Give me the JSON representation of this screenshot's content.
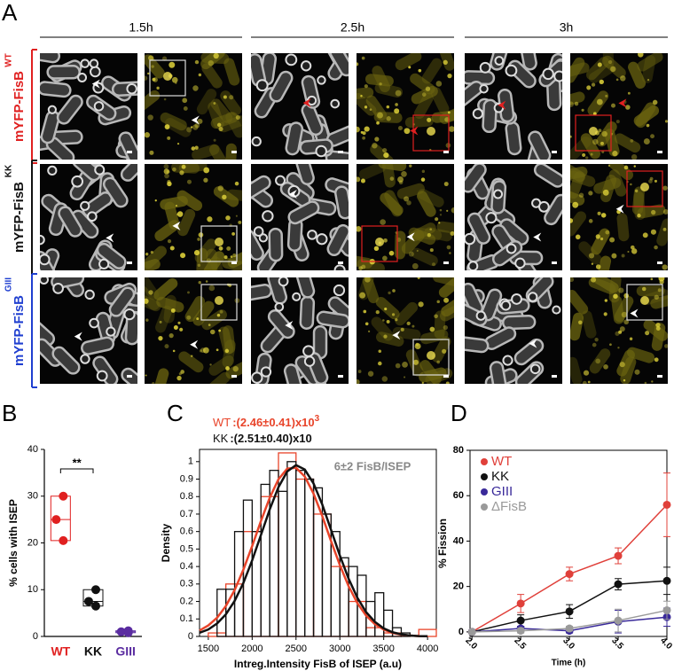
{
  "panel_a": {
    "label": "A",
    "times": [
      "1.5h",
      "2.5h",
      "3h"
    ],
    "rows": [
      {
        "strain": "WT",
        "label": "mYFP-FisB",
        "color": "#e02020"
      },
      {
        "strain": "KK",
        "label": "mYFP-FisB",
        "color": "#111111"
      },
      {
        "strain": "GIII",
        "label": "mYFP-FisB",
        "color": "#1f3fd0"
      }
    ]
  },
  "chart_data": [
    {
      "type": "strip",
      "panel": "B",
      "y_label": "% cells with ISEP",
      "categories": [
        "WT",
        "KK",
        "GIII"
      ],
      "colors": [
        "#e02020",
        "#111111",
        "#5a2ca0"
      ],
      "values": [
        [
          30,
          25,
          20.5
        ],
        [
          10,
          7.5,
          6.5
        ],
        [
          1.2,
          1,
          0.8
        ]
      ],
      "annotation": "**",
      "ylim": [
        0,
        40
      ],
      "yticks": [
        0,
        10,
        20,
        30,
        40
      ]
    },
    {
      "type": "histogram",
      "panel": "C",
      "x_label": "Intreg.Intensity FisB of ISEP (a.u)",
      "y_label": "Density",
      "annotation": "6±2 FisB/ISEP",
      "xlim": [
        1400,
        4100
      ],
      "ylim": [
        0,
        1.07
      ],
      "xticks": [
        1500,
        2000,
        2500,
        3000,
        3500,
        4000
      ],
      "yticks": [
        0,
        0.1,
        0.2,
        0.3,
        0.4,
        0.5,
        0.6,
        0.7,
        0.8,
        0.9,
        1
      ],
      "fit_x": [
        1400,
        1500,
        1600,
        1700,
        1800,
        1900,
        2000,
        2100,
        2200,
        2300,
        2400,
        2500,
        2600,
        2700,
        2800,
        2900,
        3000,
        3100,
        3200,
        3300,
        3400,
        3500,
        3600,
        3700,
        3800,
        3900,
        4000
      ],
      "series": [
        {
          "name": "WT",
          "label": ":(2.46±0.41)x10",
          "exponent": "3",
          "color": "#e8442a",
          "bins": [
            1500,
            1700,
            1900,
            2100,
            2300,
            2500,
            2700,
            2900,
            3100,
            3300,
            3500,
            3700,
            3900,
            4100
          ],
          "values": [
            0.02,
            0.3,
            0.6,
            0.8,
            1.05,
            0.9,
            0.7,
            0.4,
            0.2,
            0.05,
            0.02,
            0,
            0.04
          ],
          "fit_values": [
            0.034,
            0.063,
            0.107,
            0.174,
            0.265,
            0.382,
            0.517,
            0.66,
            0.793,
            0.899,
            0.96,
            0.965,
            0.915,
            0.817,
            0.688,
            0.545,
            0.408,
            0.287,
            0.19,
            0.119,
            0.07,
            0.039,
            0.02,
            0.01,
            0.005,
            0.002,
            0.001
          ]
        },
        {
          "name": "KK",
          "label": ":(2.51±0.40)x10",
          "color": "#111111",
          "bins": [
            1600,
            1700,
            1800,
            1900,
            2000,
            2100,
            2200,
            2300,
            2400,
            2500,
            2600,
            2700,
            2800,
            2900,
            3000,
            3100,
            3200,
            3300,
            3400,
            3500,
            3600,
            3700,
            3800
          ],
          "values": [
            0.27,
            0.27,
            0.6,
            0.78,
            0.6,
            0.87,
            0.95,
            0.83,
            1,
            0.95,
            0.9,
            0.85,
            0.7,
            0.6,
            0.45,
            0.4,
            0.35,
            0.2,
            0.25,
            0.15,
            0.05,
            0.02
          ],
          "fit_values": [
            0.021,
            0.04,
            0.074,
            0.126,
            0.203,
            0.306,
            0.435,
            0.58,
            0.726,
            0.854,
            0.944,
            0.98,
            0.955,
            0.875,
            0.754,
            0.609,
            0.463,
            0.33,
            0.221,
            0.139,
            0.083,
            0.046,
            0.024,
            0.012,
            0.005,
            0.002,
            0.001
          ]
        }
      ]
    },
    {
      "type": "line",
      "panel": "D",
      "x_label": "Time (h)",
      "y_label": "% Fission",
      "x": [
        2,
        2.5,
        3,
        3.5,
        4
      ],
      "xlim": [
        1.98,
        4
      ],
      "ylim": [
        -2,
        80
      ],
      "xticks": [
        {
          "value": 2,
          "label": "2.0"
        },
        {
          "value": 2.5,
          "label": "2.5"
        },
        {
          "value": 3,
          "label": "3.0"
        },
        {
          "value": 3.5,
          "label": "3.5"
        },
        {
          "value": 4,
          "label": "4.0"
        }
      ],
      "yticks": [
        0,
        20,
        40,
        60,
        80
      ],
      "series": [
        {
          "name": "WT",
          "color": "#e0403a",
          "values": [
            0,
            12.5,
            25.5,
            33.5,
            56
          ],
          "errors": [
            0,
            4,
            3,
            3.5,
            14
          ]
        },
        {
          "name": "KK",
          "color": "#111111",
          "values": [
            0,
            5,
            9,
            21,
            22.5
          ],
          "errors": [
            0,
            2.5,
            3,
            2.5,
            6
          ]
        },
        {
          "name": "GIII",
          "color": "#3a2a9a",
          "values": [
            0,
            1.5,
            0.5,
            4.5,
            6.5
          ],
          "errors": [
            0,
            1,
            1,
            5,
            4
          ]
        },
        {
          "name": "ΔFisB",
          "color": "#9a9a9a",
          "values": [
            0,
            0.5,
            1.5,
            5,
            9.5
          ],
          "errors": [
            0,
            1,
            1,
            5,
            4
          ]
        }
      ]
    }
  ]
}
